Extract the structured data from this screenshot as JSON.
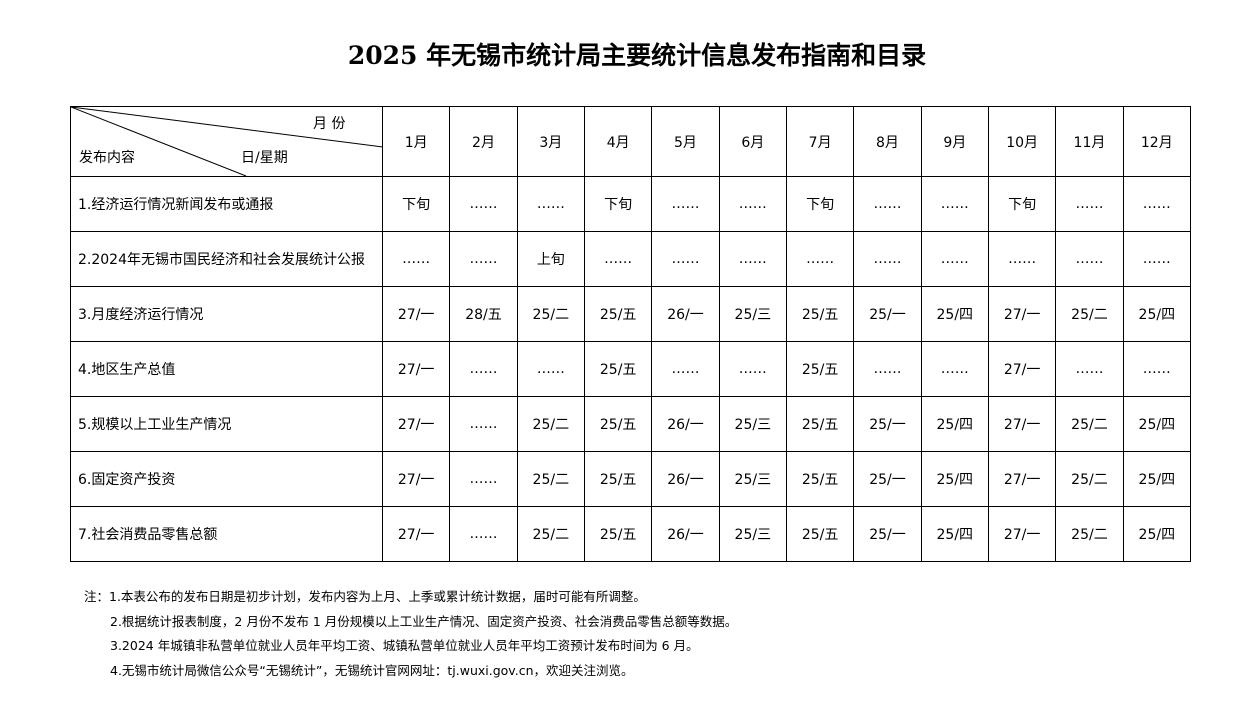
{
  "title": "2025 年无锡市统计局主要统计信息发布指南和目录",
  "header": {
    "month_label": "月 份",
    "content_label": "发布内容",
    "day_label": "日/星期",
    "months": [
      "1月",
      "2月",
      "3月",
      "4月",
      "5月",
      "6月",
      "7月",
      "8月",
      "9月",
      "10月",
      "11月",
      "12月"
    ]
  },
  "rows": [
    {
      "label": "1.经济运行情况新闻发布或通报",
      "cells": [
        "下旬",
        "……",
        "……",
        "下旬",
        "……",
        "……",
        "下旬",
        "……",
        "……",
        "下旬",
        "……",
        "……"
      ]
    },
    {
      "label": "2.2024年无锡市国民经济和社会发展统计公报",
      "cells": [
        "……",
        "……",
        "上旬",
        "……",
        "……",
        "……",
        "……",
        "……",
        "……",
        "……",
        "……",
        "……"
      ]
    },
    {
      "label": "3.月度经济运行情况",
      "cells": [
        "27/一",
        "28/五",
        "25/二",
        "25/五",
        "26/一",
        "25/三",
        "25/五",
        "25/一",
        "25/四",
        "27/一",
        "25/二",
        "25/四"
      ]
    },
    {
      "label": "4.地区生产总值",
      "cells": [
        "27/一",
        "……",
        "……",
        "25/五",
        "……",
        "……",
        "25/五",
        "……",
        "……",
        "27/一",
        "……",
        "……"
      ]
    },
    {
      "label": "5.规模以上工业生产情况",
      "cells": [
        "27/一",
        "……",
        "25/二",
        "25/五",
        "26/一",
        "25/三",
        "25/五",
        "25/一",
        "25/四",
        "27/一",
        "25/二",
        "25/四"
      ]
    },
    {
      "label": "6.固定资产投资",
      "cells": [
        "27/一",
        "……",
        "25/二",
        "25/五",
        "26/一",
        "25/三",
        "25/五",
        "25/一",
        "25/四",
        "27/一",
        "25/二",
        "25/四"
      ]
    },
    {
      "label": "7.社会消费品零售总额",
      "cells": [
        "27/一",
        "……",
        "25/二",
        "25/五",
        "26/一",
        "25/三",
        "25/五",
        "25/一",
        "25/四",
        "27/一",
        "25/二",
        "25/四"
      ]
    }
  ],
  "notes": [
    "注：1.本表公布的发布日期是初步计划，发布内容为上月、上季或累计统计数据，届时可能有所调整。",
    "2.根据统计报表制度，2 月份不发布 1 月份规模以上工业生产情况、固定资产投资、社会消费品零售总额等数据。",
    "3.2024 年城镇非私营单位就业人员年平均工资、城镇私营单位就业人员年平均工资预计发布时间为 6 月。",
    "4.无锡市统计局微信公众号“无锡统计”，无锡统计官网网址：tj.wuxi.gov.cn，欢迎关注浏览。"
  ]
}
